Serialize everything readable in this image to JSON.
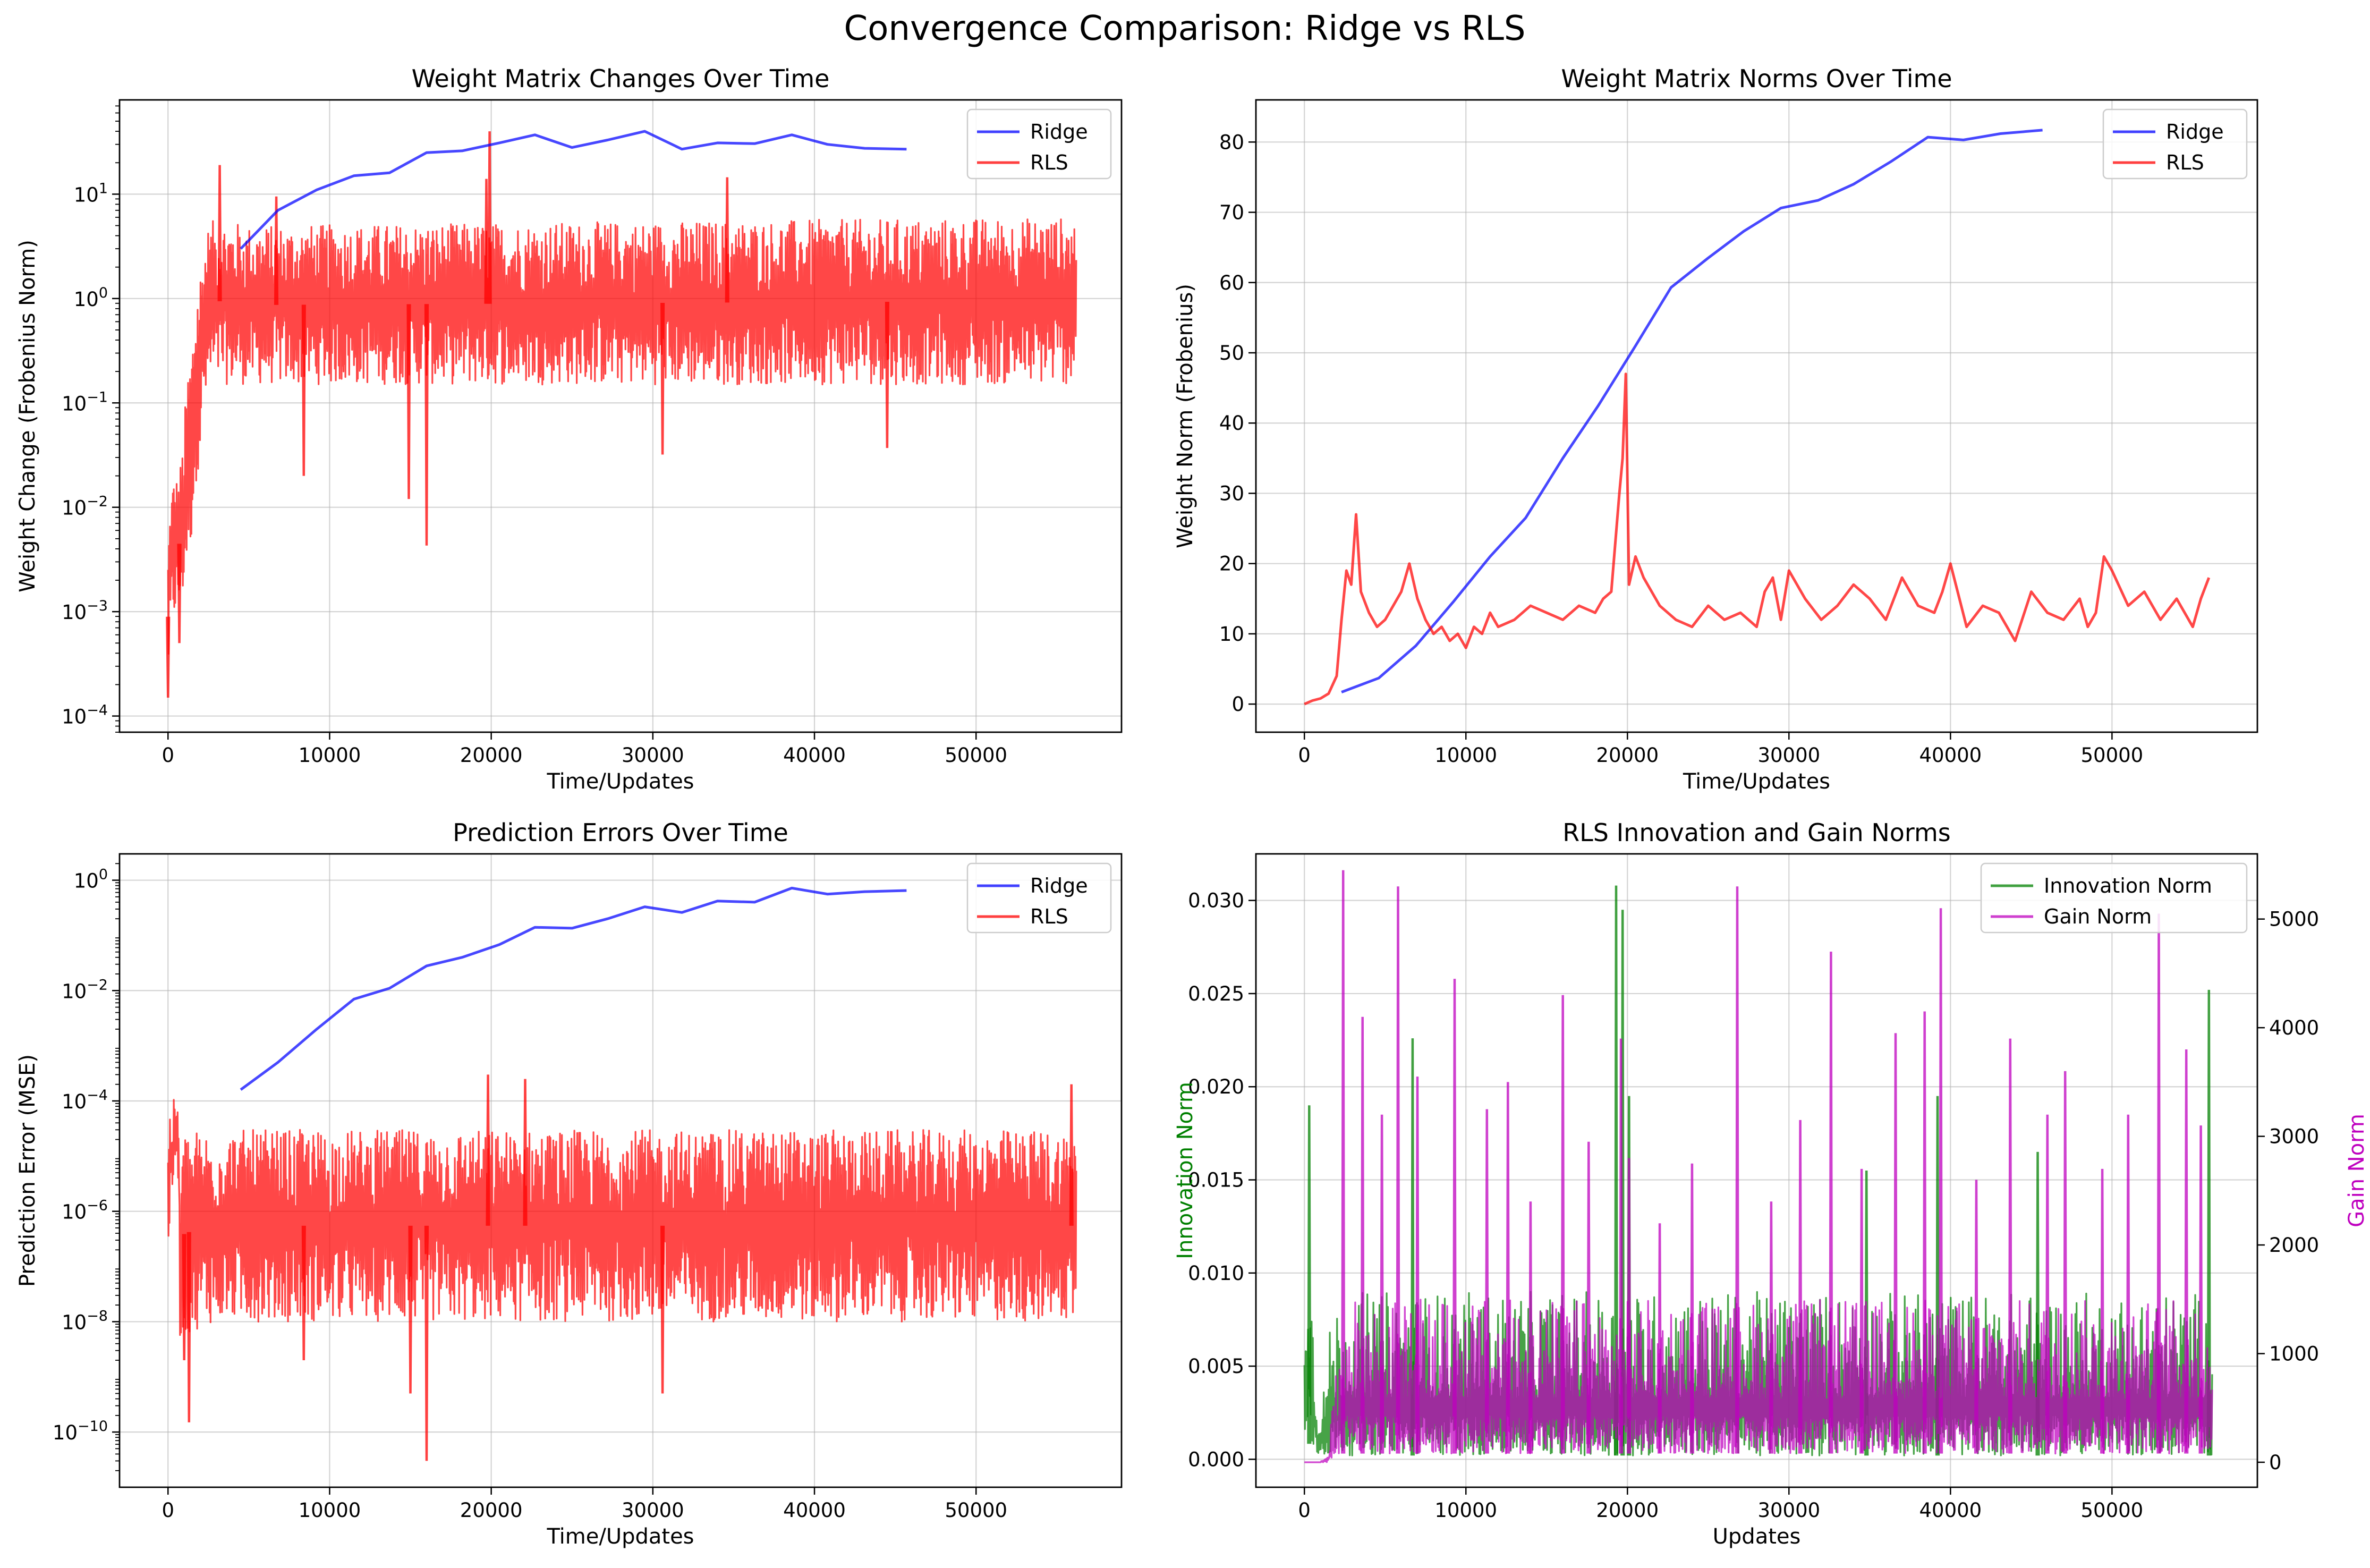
{
  "figure": {
    "title": "Convergence Comparison: Ridge vs RLS"
  },
  "colors": {
    "ridge": "#0000ff",
    "rls": "#ff0000",
    "innovation": "#008000",
    "gain": "#bf00bf",
    "grid": "#b0b0b0",
    "fill_overlap": "#8f2f96"
  },
  "chart_data": [
    {
      "id": "weight_changes",
      "type": "line",
      "title": "Weight Matrix Changes Over Time",
      "xlabel": "Time/Updates",
      "ylabel": "Weight Change (Frobenius Norm)",
      "yscale": "log",
      "xlim": [
        -3000,
        59000
      ],
      "ylim": [
        7e-05,
        80
      ],
      "xticks": [
        0,
        10000,
        20000,
        30000,
        40000,
        50000
      ],
      "xtick_labels": [
        "0",
        "10000",
        "20000",
        "30000",
        "40000",
        "50000"
      ],
      "yticks": [
        0.0001,
        0.001,
        0.01,
        0.1,
        1,
        10
      ],
      "ytick_base": "10",
      "ytick_exponents": [
        "−4",
        "−3",
        "−2",
        "−1",
        "0",
        "1"
      ],
      "legend": {
        "loc": "upper right",
        "entries": [
          "Ridge",
          "RLS"
        ]
      },
      "series": [
        {
          "name": "Ridge",
          "color_key": "ridge",
          "x": [
            4500,
            6800,
            9200,
            11500,
            13700,
            16000,
            18200,
            20500,
            22700,
            25000,
            27200,
            29500,
            31800,
            34000,
            36300,
            38600,
            40800,
            43100,
            45700
          ],
          "y": [
            3.0,
            7.0,
            11.0,
            15.0,
            16.0,
            25.0,
            26.0,
            31.0,
            37.0,
            28.0,
            33.0,
            40.0,
            27.0,
            31.0,
            30.5,
            37.0,
            30.0,
            27.5,
            27.0
          ]
        },
        {
          "name": "RLS",
          "color_key": "rls",
          "kind": "noisy_band",
          "x_range": [
            0,
            56200
          ],
          "band_x": [
            0,
            300,
            700,
            1000,
            1500,
            2000,
            2500,
            3000,
            5000,
            56200
          ],
          "band_low": [
            0.0002,
            0.0008,
            0.001,
            0.0015,
            0.005,
            0.03,
            0.12,
            0.15,
            0.15,
            0.15
          ],
          "band_high": [
            0.004,
            0.02,
            0.02,
            0.05,
            0.4,
            2.0,
            5.0,
            6.0,
            5.0,
            6.0
          ],
          "spikes": [
            {
              "x": 0,
              "y": 0.00015
            },
            {
              "x": 700,
              "y": 0.0005
            },
            {
              "x": 3200,
              "y": 19
            },
            {
              "x": 6700,
              "y": 9.5
            },
            {
              "x": 8400,
              "y": 0.02
            },
            {
              "x": 14900,
              "y": 0.012
            },
            {
              "x": 16000,
              "y": 0.0043
            },
            {
              "x": 19700,
              "y": 14
            },
            {
              "x": 19900,
              "y": 40
            },
            {
              "x": 30600,
              "y": 0.032
            },
            {
              "x": 34600,
              "y": 14.5
            },
            {
              "x": 44500,
              "y": 0.037
            }
          ]
        }
      ]
    },
    {
      "id": "weight_norms",
      "type": "line",
      "title": "Weight Matrix Norms Over Time",
      "xlabel": "Time/Updates",
      "ylabel": "Weight Norm (Frobenius)",
      "yscale": "linear",
      "xlim": [
        -3000,
        59000
      ],
      "ylim": [
        -4,
        86
      ],
      "xticks": [
        0,
        10000,
        20000,
        30000,
        40000,
        50000
      ],
      "xtick_labels": [
        "0",
        "10000",
        "20000",
        "30000",
        "40000",
        "50000"
      ],
      "yticks": [
        0,
        10,
        20,
        30,
        40,
        50,
        60,
        70,
        80
      ],
      "ytick_labels": [
        "0",
        "10",
        "20",
        "30",
        "40",
        "50",
        "60",
        "70",
        "80"
      ],
      "legend": {
        "loc": "upper right",
        "entries": [
          "Ridge",
          "RLS"
        ]
      },
      "series": [
        {
          "name": "Ridge",
          "color_key": "ridge",
          "x": [
            2300,
            4600,
            6900,
            9200,
            11500,
            13700,
            16000,
            18200,
            20500,
            22700,
            25000,
            27200,
            29500,
            31800,
            34000,
            36300,
            38600,
            40800,
            43100,
            45700
          ],
          "y": [
            1.7,
            3.7,
            8.3,
            14.5,
            21.0,
            26.5,
            35.0,
            42.5,
            51.0,
            59.3,
            63.5,
            67.3,
            70.6,
            71.7,
            74.0,
            77.2,
            80.7,
            80.3,
            81.2,
            81.7
          ]
        },
        {
          "name": "RLS",
          "color_key": "rls",
          "x": [
            0,
            500,
            1000,
            1500,
            2000,
            2300,
            2600,
            2900,
            3200,
            3500,
            4000,
            4500,
            5000,
            5500,
            6000,
            6500,
            7000,
            7500,
            8000,
            8500,
            9000,
            9500,
            10000,
            10500,
            11000,
            11500,
            12000,
            13000,
            14000,
            15000,
            16000,
            17000,
            18000,
            18500,
            19000,
            19500,
            19700,
            19900,
            20100,
            20500,
            21000,
            22000,
            23000,
            24000,
            25000,
            26000,
            27000,
            28000,
            28500,
            29000,
            29500,
            30000,
            31000,
            32000,
            33000,
            34000,
            35000,
            36000,
            37000,
            38000,
            39000,
            39500,
            40000,
            41000,
            42000,
            43000,
            44000,
            45000,
            46000,
            47000,
            48000,
            48500,
            49000,
            49500,
            50000,
            51000,
            52000,
            53000,
            54000,
            55000,
            55500,
            56000
          ],
          "y": [
            0,
            0.5,
            0.8,
            1.5,
            4,
            12,
            19,
            17,
            27,
            16,
            13,
            11,
            12,
            14,
            16,
            20,
            15,
            12,
            10,
            11,
            9,
            10,
            8,
            11,
            10,
            13,
            11,
            12,
            14,
            13,
            12,
            14,
            13,
            15,
            16,
            30,
            35,
            47,
            17,
            21,
            18,
            14,
            12,
            11,
            14,
            12,
            13,
            11,
            16,
            18,
            12,
            19,
            15,
            12,
            14,
            17,
            15,
            12,
            18,
            14,
            13,
            16,
            20,
            11,
            14,
            13,
            9,
            16,
            13,
            12,
            15,
            11,
            13,
            21,
            19,
            14,
            16,
            12,
            15,
            11,
            15,
            18
          ]
        }
      ]
    },
    {
      "id": "prediction_errors",
      "type": "line",
      "title": "Prediction Errors Over Time",
      "xlabel": "Time/Updates",
      "ylabel": "Prediction Error (MSE)",
      "yscale": "log",
      "xlim": [
        -3000,
        59000
      ],
      "ylim": [
        1e-11,
        3
      ],
      "xticks": [
        0,
        10000,
        20000,
        30000,
        40000,
        50000
      ],
      "xtick_labels": [
        "0",
        "10000",
        "20000",
        "30000",
        "40000",
        "50000"
      ],
      "yticks": [
        1e-10,
        1e-08,
        1e-06,
        0.0001,
        0.01,
        1
      ],
      "ytick_base": "10",
      "ytick_exponents": [
        "−10",
        "−8",
        "−6",
        "−4",
        "−2",
        "0"
      ],
      "legend": {
        "loc": "upper right",
        "entries": [
          "Ridge",
          "RLS"
        ]
      },
      "series": [
        {
          "name": "Ridge",
          "color_key": "ridge",
          "x": [
            4500,
            6800,
            9200,
            11500,
            13700,
            16000,
            18200,
            20500,
            22700,
            25000,
            27200,
            29500,
            31800,
            34000,
            36300,
            38600,
            40800,
            43100,
            45700
          ],
          "y": [
            0.00016,
            0.0005,
            0.002,
            0.007,
            0.011,
            0.028,
            0.04,
            0.068,
            0.14,
            0.135,
            0.2,
            0.33,
            0.26,
            0.42,
            0.4,
            0.72,
            0.56,
            0.62,
            0.65
          ]
        },
        {
          "name": "RLS",
          "color_key": "rls",
          "kind": "noisy_band",
          "x_range": [
            0,
            56200
          ],
          "band_x": [
            0,
            300,
            500,
            700,
            1000,
            2000,
            3000,
            56200
          ],
          "band_low": [
            2e-07,
            1e-06,
            1e-05,
            5e-09,
            5e-09,
            8e-09,
            1e-08,
            1e-08
          ],
          "band_high": [
            5e-05,
            0.0001,
            0.00012,
            3e-06,
            3e-05,
            3e-05,
            3e-05,
            3e-05
          ],
          "spikes": [
            {
              "x": 1000,
              "y": 2e-09
            },
            {
              "x": 1300,
              "y": 1.5e-10
            },
            {
              "x": 8400,
              "y": 2e-09
            },
            {
              "x": 15000,
              "y": 5e-10
            },
            {
              "x": 16000,
              "y": 3e-11
            },
            {
              "x": 19800,
              "y": 0.0003
            },
            {
              "x": 30600,
              "y": 5e-10
            },
            {
              "x": 22100,
              "y": 0.00025
            },
            {
              "x": 55900,
              "y": 0.0002
            }
          ]
        }
      ]
    },
    {
      "id": "innovation_gain",
      "type": "line",
      "title": "RLS Innovation and Gain Norms",
      "xlabel": "Updates",
      "ylabel": "Innovation Norm",
      "ylabel_right": "Gain Norm",
      "yscale": "linear",
      "xlim": [
        -3000,
        59000
      ],
      "ylim": [
        -0.0015,
        0.0325
      ],
      "ylim_right": [
        -230,
        5600
      ],
      "xticks": [
        0,
        10000,
        20000,
        30000,
        40000,
        50000
      ],
      "xtick_labels": [
        "0",
        "10000",
        "20000",
        "30000",
        "40000",
        "50000"
      ],
      "yticks": [
        0,
        0.005,
        0.01,
        0.015,
        0.02,
        0.025,
        0.03
      ],
      "ytick_labels": [
        "0.000",
        "0.005",
        "0.010",
        "0.015",
        "0.020",
        "0.025",
        "0.030"
      ],
      "yticks_right": [
        0,
        1000,
        2000,
        3000,
        4000,
        5000
      ],
      "ytick_labels_right": [
        "0",
        "1000",
        "2000",
        "3000",
        "4000",
        "5000"
      ],
      "legend": {
        "loc": "upper right",
        "entries": [
          "Innovation Norm",
          "Gain Norm"
        ]
      },
      "series": [
        {
          "name": "Innovation Norm",
          "color_key": "innovation",
          "axis": "left",
          "kind": "noisy_band",
          "x_range": [
            0,
            56200
          ],
          "band_x": [
            0,
            200,
            500,
            800,
            1200,
            1700,
            2300,
            56200
          ],
          "band_low": [
            0.0002,
            0.001,
            0.0005,
            0.0002,
            0.0002,
            0.0002,
            0.0002,
            0.0002
          ],
          "band_high": [
            0.012,
            0.016,
            0.009,
            0.003,
            0.004,
            0.008,
            0.009,
            0.009
          ],
          "spikes": [
            {
              "x": 300,
              "y": 0.019
            },
            {
              "x": 6700,
              "y": 0.0226
            },
            {
              "x": 19300,
              "y": 0.0308
            },
            {
              "x": 19700,
              "y": 0.0295
            },
            {
              "x": 20100,
              "y": 0.0195
            },
            {
              "x": 34800,
              "y": 0.0155
            },
            {
              "x": 39200,
              "y": 0.0195
            },
            {
              "x": 45400,
              "y": 0.0165
            },
            {
              "x": 56000,
              "y": 0.0252
            }
          ]
        },
        {
          "name": "Gain Norm",
          "color_key": "gain",
          "axis": "right",
          "kind": "noisy_band",
          "x_range": [
            0,
            56200
          ],
          "band_x": [
            0,
            1000,
            1500,
            2000,
            2400,
            56200
          ],
          "band_low": [
            0,
            0,
            0,
            20,
            80,
            80
          ],
          "band_high": [
            0,
            0,
            120,
            900,
            1500,
            1500
          ],
          "spikes": [
            {
              "x": 2400,
              "y": 5450
            },
            {
              "x": 3600,
              "y": 4100
            },
            {
              "x": 4800,
              "y": 3200
            },
            {
              "x": 5800,
              "y": 5300
            },
            {
              "x": 7000,
              "y": 3550
            },
            {
              "x": 9300,
              "y": 4450
            },
            {
              "x": 11300,
              "y": 3250
            },
            {
              "x": 12600,
              "y": 3500
            },
            {
              "x": 14000,
              "y": 2400
            },
            {
              "x": 16000,
              "y": 4300
            },
            {
              "x": 17600,
              "y": 2950
            },
            {
              "x": 19600,
              "y": 3900
            },
            {
              "x": 20100,
              "y": 2800
            },
            {
              "x": 22000,
              "y": 2200
            },
            {
              "x": 24000,
              "y": 2750
            },
            {
              "x": 26800,
              "y": 5300
            },
            {
              "x": 28900,
              "y": 2400
            },
            {
              "x": 30700,
              "y": 3150
            },
            {
              "x": 32600,
              "y": 4700
            },
            {
              "x": 34500,
              "y": 2700
            },
            {
              "x": 36600,
              "y": 3950
            },
            {
              "x": 38400,
              "y": 4150
            },
            {
              "x": 39400,
              "y": 5100
            },
            {
              "x": 41600,
              "y": 2600
            },
            {
              "x": 43700,
              "y": 3900
            },
            {
              "x": 46000,
              "y": 3200
            },
            {
              "x": 47100,
              "y": 3600
            },
            {
              "x": 49400,
              "y": 2700
            },
            {
              "x": 51000,
              "y": 3200
            },
            {
              "x": 52900,
              "y": 5050
            },
            {
              "x": 54600,
              "y": 3800
            },
            {
              "x": 55500,
              "y": 3100
            }
          ]
        }
      ]
    }
  ]
}
